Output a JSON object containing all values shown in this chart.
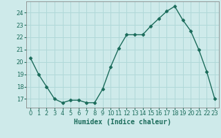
{
  "x": [
    0,
    1,
    2,
    3,
    4,
    5,
    6,
    7,
    8,
    9,
    10,
    11,
    12,
    13,
    14,
    15,
    16,
    17,
    18,
    19,
    20,
    21,
    22,
    23
  ],
  "y": [
    20.3,
    19.0,
    18.0,
    17.0,
    16.7,
    16.9,
    16.9,
    16.7,
    16.7,
    17.8,
    19.6,
    21.1,
    22.2,
    22.2,
    22.2,
    22.9,
    23.5,
    24.1,
    24.5,
    23.4,
    22.5,
    21.0,
    19.2,
    17.0
  ],
  "line_color": "#1a6b5a",
  "marker": "D",
  "markersize": 2.5,
  "linewidth": 1.0,
  "xlabel": "Humidex (Indice chaleur)",
  "xlim": [
    -0.5,
    23.5
  ],
  "ylim": [
    16.3,
    24.9
  ],
  "yticks": [
    17,
    18,
    19,
    20,
    21,
    22,
    23,
    24
  ],
  "xticks": [
    0,
    1,
    2,
    3,
    4,
    5,
    6,
    7,
    8,
    9,
    10,
    11,
    12,
    13,
    14,
    15,
    16,
    17,
    18,
    19,
    20,
    21,
    22,
    23
  ],
  "bg_color": "#ceeaea",
  "grid_color": "#b0d8d8",
  "tick_label_fontsize": 6.0,
  "xlabel_fontsize": 7.0,
  "spine_color": "#888888"
}
